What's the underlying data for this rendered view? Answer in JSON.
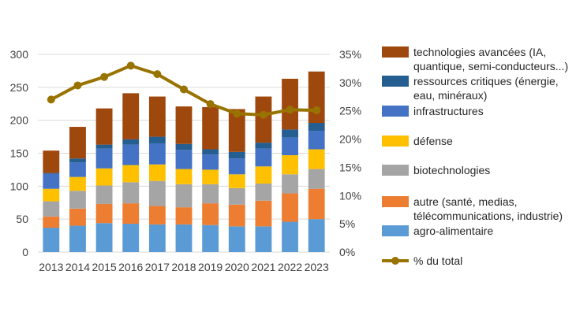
{
  "chart_data": {
    "type": "bar",
    "stacked": true,
    "categories": [
      "2013",
      "2014",
      "2015",
      "2016",
      "2017",
      "2018",
      "2019",
      "2020",
      "2021",
      "2022",
      "2023"
    ],
    "y_left": {
      "min": 0,
      "max": 300,
      "ticks": [
        0,
        50,
        100,
        150,
        200,
        250,
        300
      ],
      "tick_labels": [
        "0",
        "50",
        "100",
        "150",
        "200",
        "250",
        "300"
      ]
    },
    "y_right": {
      "min": 0,
      "max": 0.35,
      "ticks": [
        0,
        0.05,
        0.1,
        0.15,
        0.2,
        0.25,
        0.3,
        0.35
      ],
      "tick_labels": [
        "0%",
        "5%",
        "10%",
        "15%",
        "20%",
        "25%",
        "30%",
        "35%"
      ]
    },
    "grid": true,
    "legend_position": "right",
    "series": [
      {
        "name": "agro-alimentaire",
        "color": "#5b9bd5",
        "values": [
          37,
          40,
          44,
          43,
          42,
          42,
          41,
          39,
          39,
          46,
          50
        ]
      },
      {
        "name": "autre (santé, medias, télécommunications, industrie)",
        "label_lines": [
          "autre (santé, medias,",
          "télécommunications, industrie)"
        ],
        "color": "#ed7d31",
        "values": [
          17,
          26,
          29,
          31,
          28,
          26,
          33,
          33,
          39,
          43,
          46
        ]
      },
      {
        "name": "biotechnologies",
        "color": "#a5a5a5",
        "values": [
          23,
          27,
          28,
          32,
          38,
          35,
          29,
          25,
          26,
          29,
          30
        ]
      },
      {
        "name": "défense",
        "color": "#ffc000",
        "values": [
          19,
          21,
          26,
          26,
          25,
          23,
          22,
          21,
          26,
          29,
          30
        ]
      },
      {
        "name": "infrastructures",
        "color": "#4472c4",
        "values": [
          23,
          22,
          30,
          31,
          32,
          29,
          23,
          24,
          27,
          27,
          28
        ]
      },
      {
        "name": "ressources critiques (énergie, eau, minéraux)",
        "label_lines": [
          "ressources critiques (énergie,",
          "eau, minéraux)"
        ],
        "color": "#255e91",
        "values": [
          1,
          6,
          6,
          8,
          10,
          9,
          8,
          10,
          9,
          12,
          12
        ]
      },
      {
        "name": "technologies avancées (IA, quantique, semi-conducteurs...)",
        "label_lines": [
          "technologies avancées (IA,",
          "quantique, semi-conducteurs...)"
        ],
        "color": "#9e480e",
        "values": [
          34,
          48,
          55,
          70,
          61,
          57,
          64,
          65,
          70,
          77,
          78
        ]
      }
    ],
    "line_series": {
      "name": "% du total",
      "color": "#997300",
      "axis": "right",
      "values": [
        0.27,
        0.295,
        0.31,
        0.33,
        0.315,
        0.288,
        0.262,
        0.245,
        0.243,
        0.252,
        0.251
      ]
    }
  }
}
